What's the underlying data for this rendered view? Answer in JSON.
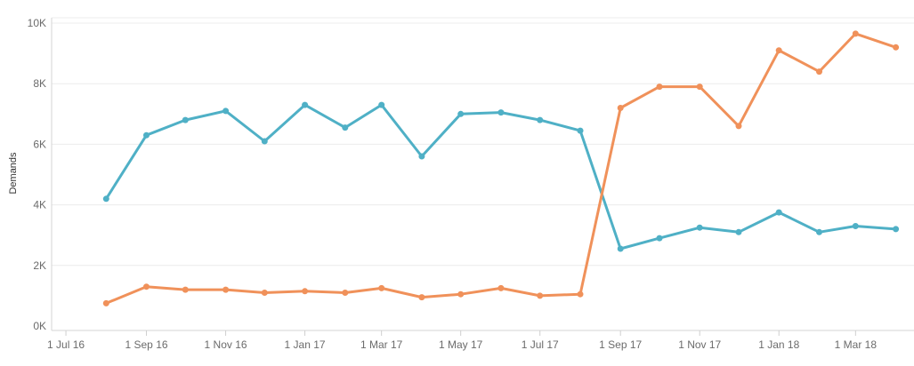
{
  "chart_data": {
    "type": "line",
    "title": "",
    "xlabel": "",
    "ylabel": "Demands",
    "x_ticks": [
      "1 Jul 16",
      "1 Sep 16",
      "1 Nov 16",
      "1 Jan 17",
      "1 Mar 17",
      "1 May 17",
      "1 Jul 17",
      "1 Sep 17",
      "1 Nov 17",
      "1 Jan 18",
      "1 Mar 18"
    ],
    "y_ticks": [
      "0K",
      "2K",
      "4K",
      "6K",
      "8K",
      "10K"
    ],
    "y_tick_values": [
      0,
      2000,
      4000,
      6000,
      8000,
      10000
    ],
    "ylim": [
      0,
      10000
    ],
    "xlim": [
      "2016-06-20",
      "2018-04-15"
    ],
    "grid": true,
    "legend": "none",
    "x": [
      "2016-08-01",
      "2016-09-01",
      "2016-10-01",
      "2016-11-01",
      "2016-12-01",
      "2017-01-01",
      "2017-02-01",
      "2017-03-01",
      "2017-04-01",
      "2017-05-01",
      "2017-06-01",
      "2017-07-01",
      "2017-08-01",
      "2017-09-01",
      "2017-10-01",
      "2017-11-01",
      "2017-12-01",
      "2018-01-01",
      "2018-02-01",
      "2018-03-01",
      "2018-04-01"
    ],
    "series": [
      {
        "color": "#4fb0c6",
        "values": [
          4200,
          6300,
          6800,
          7100,
          6100,
          7300,
          6550,
          7300,
          5600,
          7000,
          7050,
          6800,
          6450,
          2550,
          2900,
          3250,
          3100,
          3750,
          3100,
          3300,
          3200
        ]
      },
      {
        "color": "#f0915a",
        "values": [
          750,
          1300,
          1200,
          1200,
          1100,
          1150,
          1100,
          1250,
          950,
          1050,
          1250,
          1000,
          1050,
          7200,
          7900,
          7900,
          6600,
          9100,
          8400,
          9650,
          9200
        ]
      }
    ]
  }
}
